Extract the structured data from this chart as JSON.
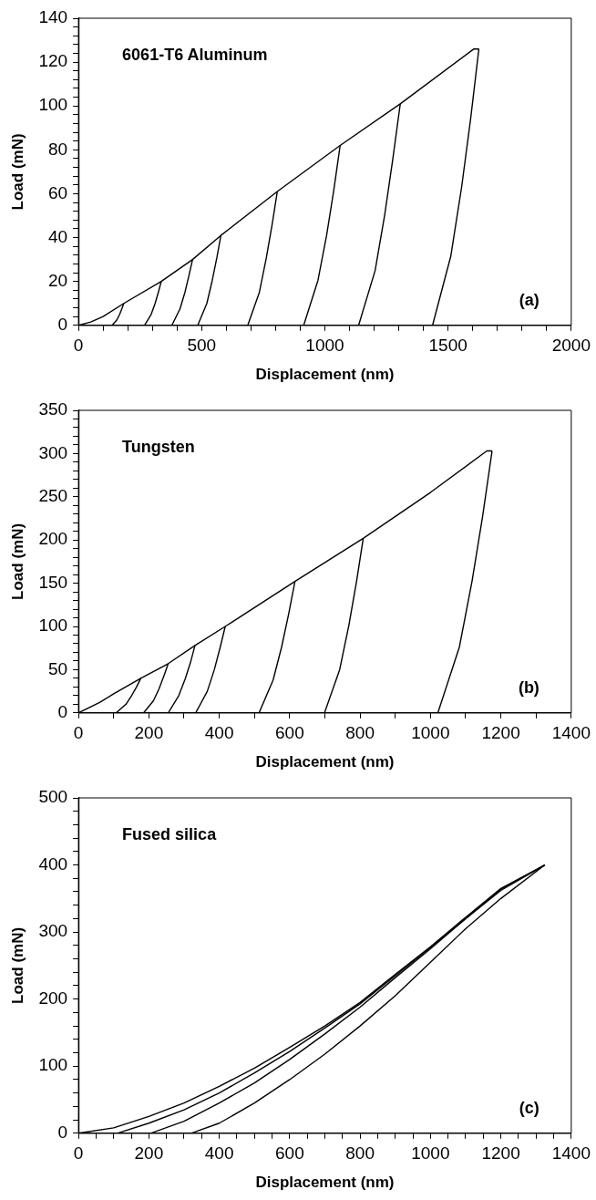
{
  "chart_data": [
    {
      "type": "line",
      "xlabel": "Displacement (nm)",
      "ylabel": "Load (mN)",
      "annotations": [
        "6061-T6 Aluminum",
        "(a)"
      ],
      "grid": false,
      "marker": "none",
      "line_style": "solid",
      "xlim": [
        0,
        2000
      ],
      "ylim": [
        0,
        140
      ],
      "xticks": [
        0,
        {
          "value": 100,
          "label": null
        },
        {
          "value": 200,
          "label": null
        },
        {
          "value": 300,
          "label": null
        },
        {
          "value": 400,
          "label": null
        },
        500,
        {
          "value": 600,
          "label": null
        },
        {
          "value": 700,
          "label": null
        },
        {
          "value": 800,
          "label": null
        },
        {
          "value": 900,
          "label": null
        },
        1000,
        {
          "value": 1100,
          "label": null
        },
        {
          "value": 1200,
          "label": null
        },
        {
          "value": 1300,
          "label": null
        },
        {
          "value": 1400,
          "label": null
        },
        1500,
        {
          "value": 1600,
          "label": null
        },
        {
          "value": 1700,
          "label": null
        },
        {
          "value": 1800,
          "label": null
        },
        {
          "value": 1900,
          "label": null
        },
        2000
      ],
      "yticks": [
        0,
        {
          "value": 4,
          "label": null
        },
        {
          "value": 8,
          "label": null
        },
        {
          "value": 12,
          "label": null
        },
        {
          "value": 16,
          "label": null
        },
        20,
        {
          "value": 24,
          "label": null
        },
        {
          "value": 28,
          "label": null
        },
        {
          "value": 32,
          "label": null
        },
        {
          "value": 36,
          "label": null
        },
        40,
        {
          "value": 44,
          "label": null
        },
        {
          "value": 48,
          "label": null
        },
        {
          "value": 52,
          "label": null
        },
        {
          "value": 56,
          "label": null
        },
        60,
        {
          "value": 64,
          "label": null
        },
        {
          "value": 68,
          "label": null
        },
        {
          "value": 72,
          "label": null
        },
        {
          "value": 76,
          "label": null
        },
        80,
        {
          "value": 84,
          "label": null
        },
        {
          "value": 88,
          "label": null
        },
        {
          "value": 92,
          "label": null
        },
        {
          "value": 96,
          "label": null
        },
        100,
        {
          "value": 104,
          "label": null
        },
        {
          "value": 108,
          "label": null
        },
        {
          "value": 112,
          "label": null
        },
        {
          "value": 116,
          "label": null
        },
        120,
        {
          "value": 124,
          "label": null
        },
        {
          "value": 128,
          "label": null
        },
        {
          "value": 132,
          "label": null
        },
        {
          "value": 136,
          "label": null
        },
        140
      ],
      "series": [
        {
          "color": "#000000",
          "x": [
            0,
            50,
            100,
            184,
            336,
            463,
            578,
            807,
            1062,
            1306,
            1605,
            1625
          ],
          "values": [
            0,
            1.5,
            4,
            10,
            20,
            30,
            41,
            61,
            82,
            101,
            126,
            126
          ]
        },
        {
          "color": "#000000",
          "x": [
            137,
            156,
            167,
            176,
            184
          ],
          "values": [
            0,
            2.5,
            5,
            7.5,
            10
          ]
        },
        {
          "color": "#000000",
          "x": [
            268,
            295,
            311,
            324,
            336
          ],
          "values": [
            0,
            5,
            10,
            15,
            20
          ]
        },
        {
          "color": "#000000",
          "x": [
            379,
            412,
            432,
            448,
            463
          ],
          "values": [
            0,
            7.5,
            15,
            22.5,
            30
          ]
        },
        {
          "color": "#000000",
          "x": [
            484,
            521,
            543,
            562,
            578
          ],
          "values": [
            0,
            10,
            20.5,
            31,
            41
          ]
        },
        {
          "color": "#000000",
          "x": [
            687,
            734,
            762,
            786,
            807
          ],
          "values": [
            0,
            15,
            30.5,
            46,
            61
          ]
        },
        {
          "color": "#000000",
          "x": [
            914,
            972,
            1007,
            1036,
            1062
          ],
          "values": [
            0,
            20.5,
            41,
            61.5,
            82
          ]
        },
        {
          "color": "#000000",
          "x": [
            1137,
            1204,
            1243,
            1276,
            1306
          ],
          "values": [
            0,
            25,
            50.5,
            76,
            101
          ]
        },
        {
          "color": "#000000",
          "x": [
            1437,
            1511,
            1555,
            1592,
            1625
          ],
          "values": [
            0,
            31.5,
            63,
            94.5,
            126
          ]
        }
      ]
    },
    {
      "type": "line",
      "xlabel": "Displacement (nm)",
      "ylabel": "Load (mN)",
      "annotations": [
        "Tungsten",
        "(b)"
      ],
      "grid": false,
      "marker": "none",
      "line_style": "solid",
      "xlim": [
        0,
        1400
      ],
      "ylim": [
        0,
        350
      ],
      "xticks": [
        0,
        {
          "value": 100,
          "label": null
        },
        200,
        {
          "value": 300,
          "label": null
        },
        400,
        {
          "value": 500,
          "label": null
        },
        600,
        {
          "value": 700,
          "label": null
        },
        800,
        {
          "value": 900,
          "label": null
        },
        1000,
        {
          "value": 1100,
          "label": null
        },
        1200,
        {
          "value": 1300,
          "label": null
        },
        1400
      ],
      "yticks": [
        0,
        {
          "value": 10,
          "label": null
        },
        {
          "value": 20,
          "label": null
        },
        {
          "value": 30,
          "label": null
        },
        {
          "value": 40,
          "label": null
        },
        50,
        {
          "value": 60,
          "label": null
        },
        {
          "value": 70,
          "label": null
        },
        {
          "value": 80,
          "label": null
        },
        {
          "value": 90,
          "label": null
        },
        100,
        {
          "value": 110,
          "label": null
        },
        {
          "value": 120,
          "label": null
        },
        {
          "value": 130,
          "label": null
        },
        {
          "value": 140,
          "label": null
        },
        150,
        {
          "value": 160,
          "label": null
        },
        {
          "value": 170,
          "label": null
        },
        {
          "value": 180,
          "label": null
        },
        {
          "value": 190,
          "label": null
        },
        200,
        {
          "value": 210,
          "label": null
        },
        {
          "value": 220,
          "label": null
        },
        {
          "value": 230,
          "label": null
        },
        {
          "value": 240,
          "label": null
        },
        250,
        {
          "value": 260,
          "label": null
        },
        {
          "value": 270,
          "label": null
        },
        {
          "value": 280,
          "label": null
        },
        {
          "value": 290,
          "label": null
        },
        300,
        {
          "value": 310,
          "label": null
        },
        {
          "value": 320,
          "label": null
        },
        {
          "value": 330,
          "label": null
        },
        {
          "value": 340,
          "label": null
        },
        350
      ],
      "series": [
        {
          "color": "#000000",
          "x": [
            0,
            60,
            100,
            177,
            255,
            331,
            417,
            615,
            809,
            1000,
            1160,
            1175
          ],
          "values": [
            0,
            12,
            22,
            40,
            57,
            78,
            100,
            152,
            202,
            255,
            303,
            303
          ]
        },
        {
          "color": "#000000",
          "x": [
            107,
            135,
            151,
            165,
            177
          ],
          "values": [
            0,
            10,
            20,
            30,
            40
          ]
        },
        {
          "color": "#000000",
          "x": [
            185,
            213,
            229,
            243,
            255
          ],
          "values": [
            0,
            14,
            28,
            43,
            57
          ]
        },
        {
          "color": "#000000",
          "x": [
            255,
            285,
            303,
            318,
            331
          ],
          "values": [
            0,
            20,
            39,
            58,
            78
          ]
        },
        {
          "color": "#000000",
          "x": [
            333,
            366,
            386,
            402,
            417
          ],
          "values": [
            0,
            25,
            50,
            75,
            100
          ]
        },
        {
          "color": "#000000",
          "x": [
            513,
            553,
            577,
            597,
            615
          ],
          "values": [
            0,
            38,
            76,
            114,
            152
          ]
        },
        {
          "color": "#000000",
          "x": [
            699,
            742,
            768,
            790,
            809
          ],
          "values": [
            0,
            50,
            101,
            152,
            202
          ]
        },
        {
          "color": "#000000",
          "x": [
            1021,
            1082,
            1118,
            1148,
            1175
          ],
          "values": [
            0,
            76,
            152,
            227,
            303
          ]
        }
      ]
    },
    {
      "type": "line",
      "xlabel": "Displacement (nm)",
      "ylabel": "Load (mN)",
      "annotations": [
        "Fused silica",
        "(c)"
      ],
      "grid": false,
      "marker": "none",
      "line_style": "solid",
      "xlim": [
        0,
        1400
      ],
      "ylim": [
        0,
        500
      ],
      "xticks": [
        0,
        {
          "value": 50,
          "label": null
        },
        {
          "value": 100,
          "label": null
        },
        {
          "value": 150,
          "label": null
        },
        200,
        {
          "value": 250,
          "label": null
        },
        {
          "value": 300,
          "label": null
        },
        {
          "value": 350,
          "label": null
        },
        400,
        {
          "value": 450,
          "label": null
        },
        {
          "value": 500,
          "label": null
        },
        {
          "value": 550,
          "label": null
        },
        600,
        {
          "value": 650,
          "label": null
        },
        {
          "value": 700,
          "label": null
        },
        {
          "value": 750,
          "label": null
        },
        800,
        {
          "value": 850,
          "label": null
        },
        {
          "value": 900,
          "label": null
        },
        {
          "value": 950,
          "label": null
        },
        1000,
        {
          "value": 1050,
          "label": null
        },
        {
          "value": 1100,
          "label": null
        },
        {
          "value": 1150,
          "label": null
        },
        1200,
        {
          "value": 1250,
          "label": null
        },
        {
          "value": 1300,
          "label": null
        },
        {
          "value": 1350,
          "label": null
        },
        1400
      ],
      "yticks": [
        0,
        {
          "value": 20,
          "label": null
        },
        {
          "value": 40,
          "label": null
        },
        {
          "value": 60,
          "label": null
        },
        {
          "value": 80,
          "label": null
        },
        100,
        {
          "value": 120,
          "label": null
        },
        {
          "value": 140,
          "label": null
        },
        {
          "value": 160,
          "label": null
        },
        {
          "value": 180,
          "label": null
        },
        200,
        {
          "value": 220,
          "label": null
        },
        {
          "value": 240,
          "label": null
        },
        {
          "value": 260,
          "label": null
        },
        {
          "value": 280,
          "label": null
        },
        300,
        {
          "value": 320,
          "label": null
        },
        {
          "value": 340,
          "label": null
        },
        {
          "value": 360,
          "label": null
        },
        {
          "value": 380,
          "label": null
        },
        400,
        {
          "value": 420,
          "label": null
        },
        {
          "value": 440,
          "label": null
        },
        {
          "value": 460,
          "label": null
        },
        {
          "value": 480,
          "label": null
        },
        500
      ],
      "series": [
        {
          "color": "#000000",
          "x": [
            0,
            100,
            200,
            300,
            400,
            500,
            600,
            700,
            800,
            900,
            1000,
            1100,
            1200,
            1325
          ],
          "values": [
            0,
            8,
            25,
            45,
            70,
            97,
            128,
            160,
            195,
            237,
            278,
            322,
            365,
            400
          ]
        },
        {
          "color": "#000000",
          "x": [
            110,
            200,
            300,
            400,
            500,
            600,
            700,
            800,
            900,
            1000,
            1100,
            1200,
            1325
          ],
          "values": [
            0,
            15,
            35,
            60,
            90,
            122,
            157,
            193,
            235,
            277,
            320,
            364,
            400
          ]
        },
        {
          "color": "#000000",
          "x": [
            205,
            300,
            400,
            500,
            600,
            700,
            800,
            900,
            1000,
            1100,
            1200,
            1325
          ],
          "values": [
            0,
            18,
            45,
            75,
            110,
            148,
            188,
            232,
            275,
            320,
            362,
            400
          ]
        },
        {
          "color": "#000000",
          "x": [
            320,
            400,
            500,
            600,
            700,
            800,
            900,
            1000,
            1100,
            1200,
            1325
          ],
          "values": [
            0,
            15,
            45,
            80,
            118,
            160,
            205,
            255,
            305,
            350,
            400
          ]
        }
      ]
    }
  ]
}
